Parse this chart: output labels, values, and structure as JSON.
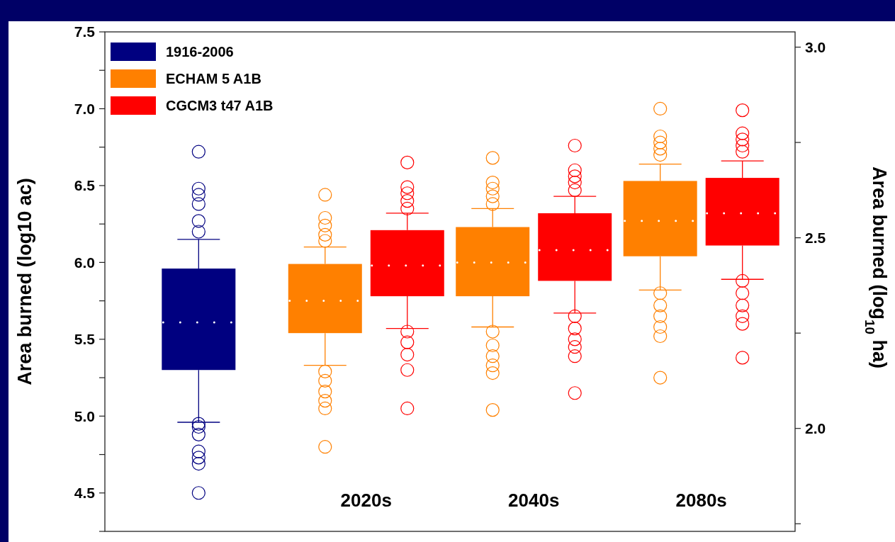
{
  "chart_data": {
    "type": "box",
    "categories": [
      null,
      "2020s",
      "2040s",
      "2080s"
    ],
    "ylabel": "Area burned (log10 ac)",
    "y2label": "Area burned (log$_{10}$ ha)",
    "ylim": [
      4.25,
      7.5
    ],
    "yticks": [
      {
        "value": 4.25,
        "label": null
      },
      4.5,
      {
        "value": 4.75,
        "label": null
      },
      {
        "value": 5,
        "label": "5.0"
      },
      {
        "value": 5.25,
        "label": null
      },
      5.5,
      {
        "value": 5.75,
        "label": null
      },
      {
        "value": 6,
        "label": "6.0"
      },
      {
        "value": 6.25,
        "label": null
      },
      6.5,
      {
        "value": 6.75,
        "label": null
      },
      {
        "value": 7,
        "label": "7.0"
      },
      {
        "value": 7.25,
        "label": null
      },
      7.5
    ],
    "y2lim": [
      1.73,
      3.04
    ],
    "y2ticks": [
      {
        "value": 1.75,
        "label": null
      },
      {
        "value": 2,
        "label": "2.0"
      },
      {
        "value": 2.25,
        "label": null
      },
      2.5,
      {
        "value": 2.75,
        "label": null
      },
      {
        "value": 3,
        "label": "3.0"
      }
    ],
    "legend": "top left",
    "grid": false,
    "series": [
      {
        "name": "1916-2006",
        "color": "#000080",
        "boxes": [
          {
            "low": 4.96,
            "q1": 5.3,
            "median": 5.61,
            "q3": 5.96,
            "high": 6.15,
            "outliers": [
              6.72,
              6.48,
              6.44,
              6.38,
              6.27,
              6.2,
              4.95,
              4.93,
              4.88,
              4.77,
              4.73,
              4.69,
              4.5
            ]
          },
          null,
          null,
          null
        ]
      },
      {
        "name": "ECHAM 5 A1B",
        "color": "#ff8000",
        "boxes": [
          null,
          {
            "low": 5.33,
            "q1": 5.54,
            "median": 5.75,
            "q3": 5.99,
            "high": 6.1,
            "outliers": [
              6.44,
              6.29,
              6.24,
              6.18,
              6.14,
              5.29,
              5.23,
              5.16,
              5.1,
              5.05,
              4.8
            ]
          },
          {
            "low": 5.58,
            "q1": 5.78,
            "median": 6.0,
            "q3": 6.23,
            "high": 6.35,
            "outliers": [
              6.68,
              6.52,
              6.48,
              6.43,
              6.38,
              5.55,
              5.46,
              5.39,
              5.33,
              5.28,
              5.04
            ]
          },
          {
            "low": 5.82,
            "q1": 6.04,
            "median": 6.27,
            "q3": 6.53,
            "high": 6.64,
            "outliers": [
              7.0,
              6.82,
              6.78,
              6.74,
              6.7,
              5.8,
              5.72,
              5.65,
              5.58,
              5.52,
              5.25
            ]
          }
        ]
      },
      {
        "name": "CGCM3 t47 A1B",
        "color": "#ff0000",
        "boxes": [
          null,
          {
            "low": 5.57,
            "q1": 5.78,
            "median": 5.98,
            "q3": 6.21,
            "high": 6.32,
            "outliers": [
              6.65,
              6.49,
              6.45,
              6.4,
              6.35,
              5.55,
              5.48,
              5.4,
              5.3,
              5.05
            ]
          },
          {
            "low": 5.67,
            "q1": 5.88,
            "median": 6.08,
            "q3": 6.32,
            "high": 6.43,
            "outliers": [
              6.76,
              6.6,
              6.56,
              6.52,
              6.47,
              5.65,
              5.57,
              5.5,
              5.45,
              5.39,
              5.15
            ]
          },
          {
            "low": 5.89,
            "q1": 6.11,
            "median": 6.32,
            "q3": 6.55,
            "high": 6.66,
            "outliers": [
              6.99,
              6.84,
              6.8,
              6.76,
              6.72,
              5.88,
              5.8,
              5.72,
              5.65,
              5.6,
              5.38
            ]
          }
        ]
      }
    ]
  }
}
